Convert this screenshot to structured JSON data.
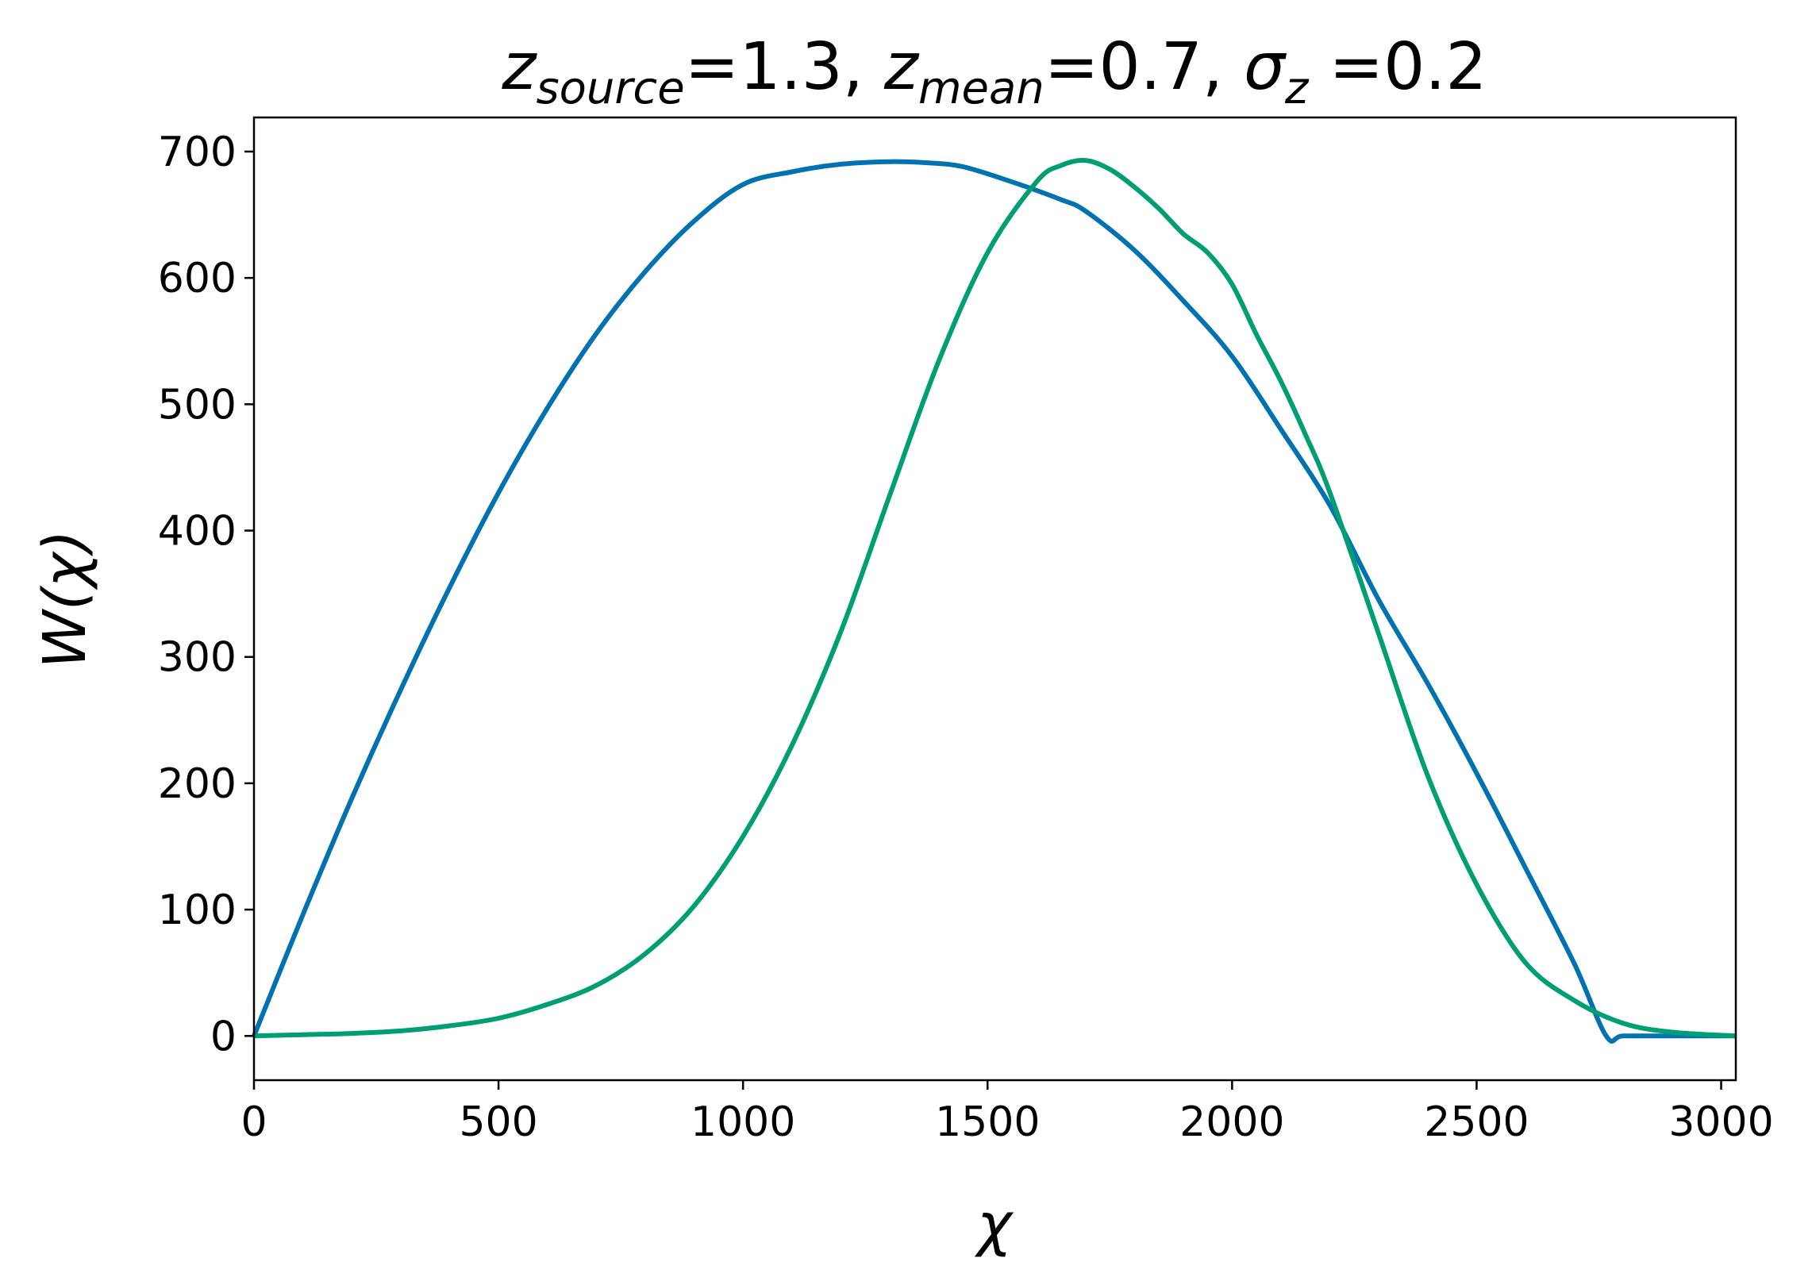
{
  "chart_data": {
    "type": "line",
    "title": {
      "parts": [
        {
          "text": "z",
          "italic": true
        },
        {
          "text": "source",
          "italic": true,
          "sub": true
        },
        {
          "text": "=1.3, ",
          "italic": false
        },
        {
          "text": "z",
          "italic": true
        },
        {
          "text": "mean",
          "italic": true,
          "sub": true
        },
        {
          "text": "=0.7, ",
          "italic": false
        },
        {
          "text": "σ",
          "italic": true
        },
        {
          "text": "z",
          "italic": true,
          "sub": true
        },
        {
          "text": " =0.2",
          "italic": false
        }
      ]
    },
    "xlabel": "χ",
    "ylabel": "W(χ)",
    "xlim": [
      0,
      3030
    ],
    "ylim": [
      -35,
      727
    ],
    "xticks": [
      0,
      500,
      1000,
      1500,
      2000,
      2500,
      3000
    ],
    "yticks": [
      0,
      100,
      200,
      300,
      400,
      500,
      600,
      700
    ],
    "grid": false,
    "series": [
      {
        "color": "#0072b2",
        "x": [
          0,
          100,
          200,
          300,
          400,
          500,
          600,
          700,
          800,
          900,
          1000,
          1100,
          1200,
          1300,
          1380,
          1450,
          1550,
          1650,
          1700,
          1800,
          1900,
          2000,
          2100,
          2200,
          2300,
          2400,
          2500,
          2600,
          2700,
          2765,
          2800,
          2900,
          3030
        ],
        "y": [
          0,
          96,
          188,
          274,
          355,
          430,
          497,
          556,
          605,
          645,
          674,
          684,
          690,
          692,
          691,
          688,
          676,
          662,
          653,
          622,
          582,
          538,
          480,
          420,
          345,
          279,
          208,
          133,
          57,
          0,
          0,
          0,
          0
        ]
      },
      {
        "color": "#009e73",
        "x": [
          0,
          100,
          200,
          300,
          400,
          500,
          600,
          700,
          800,
          900,
          1000,
          1100,
          1200,
          1300,
          1400,
          1500,
          1600,
          1650,
          1700,
          1750,
          1800,
          1850,
          1900,
          1950,
          2000,
          2050,
          2100,
          2150,
          2200,
          2300,
          2400,
          2500,
          2600,
          2700,
          2800,
          2900,
          3030
        ],
        "y": [
          0,
          1,
          2,
          4,
          8,
          14,
          25,
          40,
          65,
          103,
          158,
          230,
          320,
          428,
          534,
          620,
          676,
          689,
          693,
          686,
          672,
          655,
          635,
          620,
          595,
          555,
          518,
          476,
          430,
          318,
          206,
          120,
          58,
          28,
          10,
          3,
          0
        ]
      }
    ]
  }
}
